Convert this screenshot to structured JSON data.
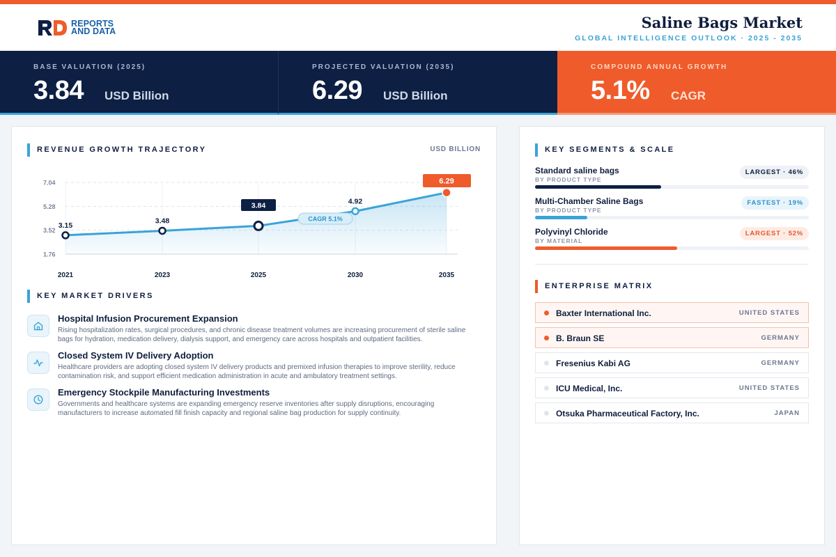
{
  "header": {
    "logo_line1": "REPORTS",
    "logo_line2": "AND DATA",
    "title": "Saline Bags Market",
    "subtitle": "GLOBAL INTELLIGENCE OUTLOOK  ·  2025 - 2035"
  },
  "kpis": [
    {
      "label": "BASE VALUATION (2025)",
      "value": "3.84",
      "unit": "USD Billion"
    },
    {
      "label": "PROJECTED VALUATION (2035)",
      "value": "6.29",
      "unit": "USD Billion"
    },
    {
      "label": "COMPOUND ANNUAL GROWTH",
      "value": "5.1%",
      "unit": "CAGR"
    }
  ],
  "colors": {
    "navy": "#0e1f44",
    "accent_orange": "#ef5b2b",
    "accent_blue": "#3aa3d8"
  },
  "revenue": {
    "title": "REVENUE GROWTH TRAJECTORY",
    "unit_label": "USD BILLION"
  },
  "chart_data": {
    "type": "area",
    "title": "REVENUE GROWTH TRAJECTORY",
    "ylabel": "USD BILLION",
    "categories": [
      "2021",
      "2023",
      "2025",
      "2030",
      "2035"
    ],
    "values": [
      3.15,
      3.48,
      3.84,
      4.92,
      6.29
    ],
    "value_labels": [
      "3.15",
      "3.48",
      "3.84",
      "4.92",
      "6.29"
    ],
    "yticks": [
      "1.76",
      "3.52",
      "5.28",
      "7.04"
    ],
    "ylim": [
      1.76,
      7.04
    ],
    "annotation": "CAGR 5.1%",
    "highlight_base_index": 2,
    "highlight_end_index": 4,
    "grid": true,
    "legend": "none"
  },
  "drivers": {
    "title": "KEY MARKET DRIVERS",
    "items": [
      {
        "icon": "building-icon",
        "title": "Hospital Infusion Procurement Expansion",
        "desc": "Rising hospitalization rates, surgical procedures, and chronic disease treatment volumes are increasing procurement of sterile saline bags for hydration, medication delivery, dialysis support, and emergency care across hospitals and outpatient facilities."
      },
      {
        "icon": "pulse-icon",
        "title": "Closed System IV Delivery Adoption",
        "desc": "Healthcare providers are adopting closed system IV delivery products and premixed infusion therapies to improve sterility, reduce contamination risk, and support efficient medication administration in acute and ambulatory treatment settings."
      },
      {
        "icon": "clock-icon",
        "title": "Emergency Stockpile Manufacturing Investments",
        "desc": "Governments and healthcare systems are expanding emergency reserve inventories after supply disruptions, encouraging manufacturers to increase automated fill finish capacity and regional saline bag production for supply continuity."
      }
    ]
  },
  "segments": {
    "title": "KEY SEGMENTS & SCALE",
    "items": [
      {
        "name": "Standard saline bags",
        "category": "BY PRODUCT TYPE",
        "badge": "LARGEST · 46%",
        "share": 46,
        "color": "#0e1f44",
        "badge_style": "navy"
      },
      {
        "name": "Multi-Chamber Saline Bags",
        "category": "BY PRODUCT TYPE",
        "badge": "FASTEST · 19%",
        "share": 19,
        "color": "#3aa3d8",
        "badge_style": "blue"
      },
      {
        "name": "Polyvinyl Chloride",
        "category": "BY MATERIAL",
        "badge": "LARGEST · 52%",
        "share": 52,
        "color": "#ef5b2b",
        "badge_style": "orange"
      }
    ]
  },
  "enterprise": {
    "title": "ENTERPRISE MATRIX",
    "companies": [
      {
        "name": "Baxter International Inc.",
        "country": "UNITED STATES",
        "highlight": true
      },
      {
        "name": "B. Braun SE",
        "country": "GERMANY",
        "highlight": true
      },
      {
        "name": "Fresenius Kabi AG",
        "country": "GERMANY",
        "highlight": false
      },
      {
        "name": "ICU Medical, Inc.",
        "country": "UNITED STATES",
        "highlight": false
      },
      {
        "name": "Otsuka Pharmaceutical Factory, Inc.",
        "country": "JAPAN",
        "highlight": false
      }
    ]
  }
}
